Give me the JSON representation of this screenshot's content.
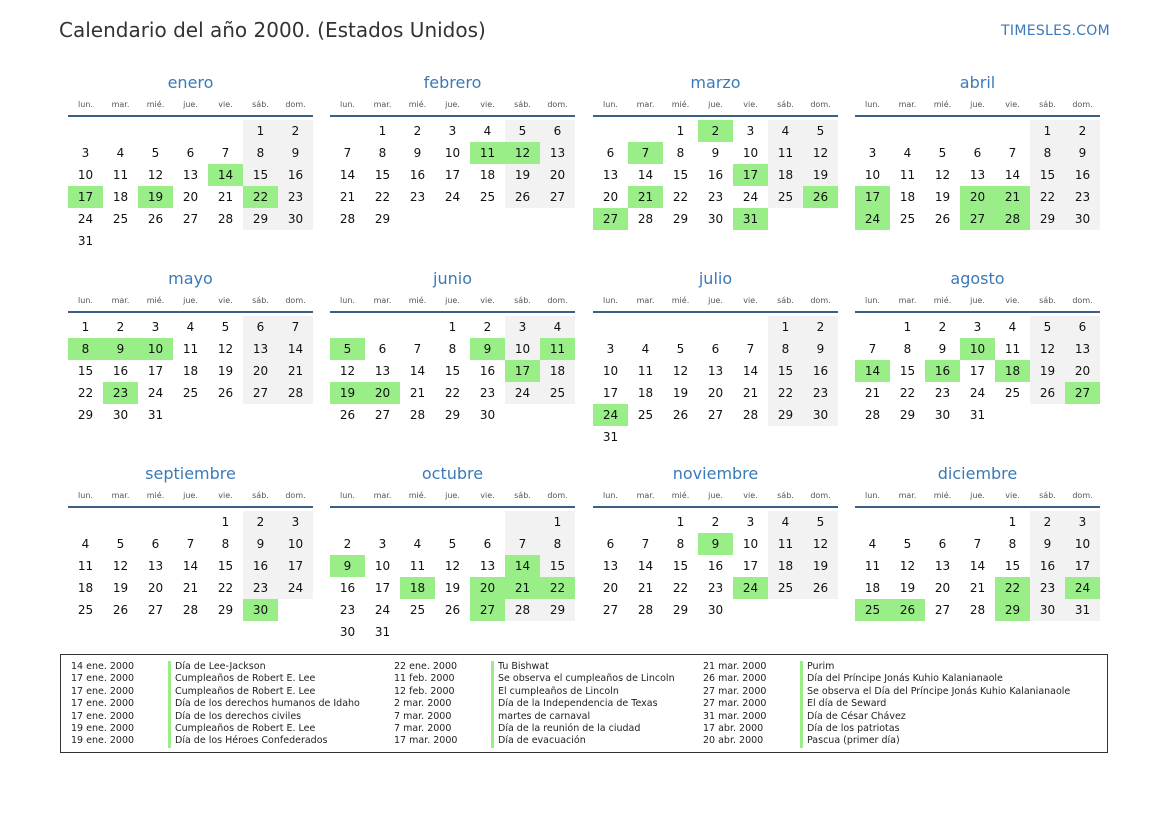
{
  "header": {
    "title": "Calendario del año 2000. (Estados Unidos)",
    "brand": "TIMESLES.COM"
  },
  "weekdays": [
    "lun.",
    "mar.",
    "mié.",
    "jue.",
    "vie.",
    "sáb.",
    "dom."
  ],
  "months": [
    {
      "name": "enero",
      "offset": 5,
      "days": 31,
      "holidays": [
        14,
        17,
        19,
        22
      ]
    },
    {
      "name": "febrero",
      "offset": 1,
      "days": 29,
      "holidays": [
        11,
        12
      ]
    },
    {
      "name": "marzo",
      "offset": 2,
      "days": 31,
      "holidays": [
        2,
        7,
        17,
        21,
        26,
        27,
        31
      ]
    },
    {
      "name": "abril",
      "offset": 5,
      "days": 30,
      "holidays": [
        17,
        20,
        21,
        24,
        27,
        28
      ]
    },
    {
      "name": "mayo",
      "offset": 0,
      "days": 31,
      "holidays": [
        8,
        9,
        10,
        23
      ]
    },
    {
      "name": "junio",
      "offset": 3,
      "days": 30,
      "holidays": [
        5,
        9,
        11,
        17,
        19,
        20
      ]
    },
    {
      "name": "julio",
      "offset": 5,
      "days": 31,
      "holidays": [
        24
      ]
    },
    {
      "name": "agosto",
      "offset": 1,
      "days": 31,
      "holidays": [
        10,
        14,
        16,
        18,
        27
      ]
    },
    {
      "name": "septiembre",
      "offset": 4,
      "days": 30,
      "holidays": [
        30
      ]
    },
    {
      "name": "octubre",
      "offset": 6,
      "days": 31,
      "holidays": [
        9,
        14,
        18,
        20,
        21,
        22,
        27
      ]
    },
    {
      "name": "noviembre",
      "offset": 2,
      "days": 30,
      "holidays": [
        9,
        24
      ]
    },
    {
      "name": "diciembre",
      "offset": 4,
      "days": 31,
      "holidays": [
        22,
        24,
        25,
        26,
        29
      ]
    }
  ],
  "holiday_columns": [
    [
      {
        "date": "14 ene. 2000",
        "name": "Día de Lee-Jackson"
      },
      {
        "date": "17 ene. 2000",
        "name": "Cumpleaños de Robert E. Lee"
      },
      {
        "date": "17 ene. 2000",
        "name": "Cumpleaños de Robert E. Lee"
      },
      {
        "date": "17 ene. 2000",
        "name": "Día de los derechos humanos de Idaho"
      },
      {
        "date": "17 ene. 2000",
        "name": "Día de los derechos civiles"
      },
      {
        "date": "19 ene. 2000",
        "name": "Cumpleaños de Robert E. Lee"
      },
      {
        "date": "19 ene. 2000",
        "name": "Día de los Héroes Confederados"
      }
    ],
    [
      {
        "date": "22 ene. 2000",
        "name": "Tu Bishwat"
      },
      {
        "date": "11 feb. 2000",
        "name": "Se observa el cumpleaños de Lincoln"
      },
      {
        "date": "12 feb. 2000",
        "name": "El cumpleaños de Lincoln"
      },
      {
        "date": "2 mar. 2000",
        "name": "Día de la Independencia de Texas"
      },
      {
        "date": "7 mar. 2000",
        "name": "martes de carnaval"
      },
      {
        "date": "7 mar. 2000",
        "name": "Día de la reunión de la ciudad"
      },
      {
        "date": "17 mar. 2000",
        "name": "Día de evacuación"
      }
    ],
    [
      {
        "date": "21 mar. 2000",
        "name": "Purim"
      },
      {
        "date": "26 mar. 2000",
        "name": "Día del Príncipe Jonás Kuhio Kalanianaole"
      },
      {
        "date": "27 mar. 2000",
        "name": "Se observa el Día del Príncipe Jonás Kuhio Kalanianaole"
      },
      {
        "date": "27 mar. 2000",
        "name": "El día de Seward"
      },
      {
        "date": "31 mar. 2000",
        "name": "Día de César Chávez"
      },
      {
        "date": "17 abr. 2000",
        "name": "Día de los patriotas"
      },
      {
        "date": "20 abr. 2000",
        "name": "Pascua (primer día)"
      }
    ]
  ]
}
